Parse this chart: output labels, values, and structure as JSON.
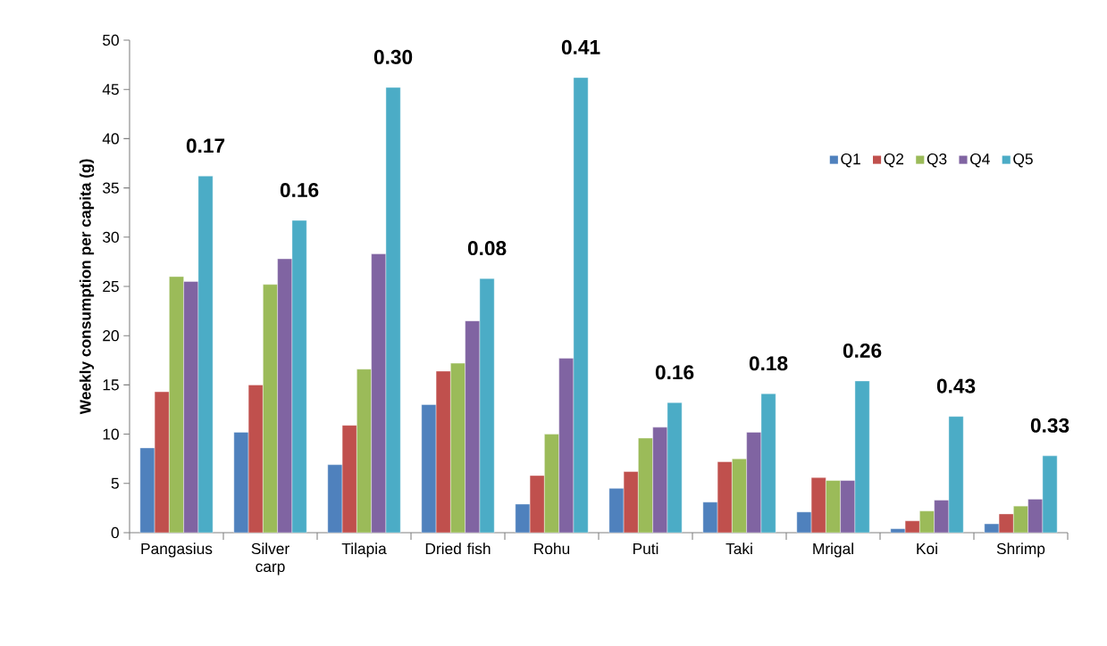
{
  "chart_data": {
    "type": "bar",
    "ylabel": "Weekly consumption per capita (g)",
    "categories": [
      "Pangasius",
      "Silver carp",
      "Tilapia",
      "Dried fish",
      "Rohu",
      "Puti",
      "Taki",
      "Mrigal",
      "Koi",
      "Shrimp"
    ],
    "series": [
      {
        "name": "Q1",
        "color": "#4f81bd",
        "values": [
          8.6,
          10.2,
          6.9,
          13.0,
          2.9,
          4.5,
          3.1,
          2.1,
          0.4,
          0.9
        ]
      },
      {
        "name": "Q2",
        "color": "#c0504d",
        "values": [
          14.3,
          15.0,
          10.9,
          16.4,
          5.8,
          6.2,
          7.2,
          5.6,
          1.2,
          1.9
        ]
      },
      {
        "name": "Q3",
        "color": "#9bbb59",
        "values": [
          26.0,
          25.2,
          16.6,
          17.2,
          10.0,
          9.6,
          7.5,
          5.3,
          2.2,
          2.7
        ]
      },
      {
        "name": "Q4",
        "color": "#8064a2",
        "values": [
          25.5,
          27.8,
          28.3,
          21.5,
          17.7,
          10.7,
          10.2,
          5.3,
          3.3,
          3.4
        ]
      },
      {
        "name": "Q5",
        "color": "#4bacc6",
        "values": [
          36.2,
          31.7,
          45.2,
          25.8,
          46.2,
          13.2,
          14.1,
          15.4,
          11.8,
          7.8
        ]
      }
    ],
    "ylim": [
      0,
      50
    ],
    "yticks": [
      0,
      5,
      10,
      15,
      20,
      25,
      30,
      35,
      40,
      45,
      50
    ],
    "legend": "top right",
    "annotations": [
      "0.17",
      "0.16",
      "0.30",
      "0.08",
      "0.41",
      "0.16",
      "0.18",
      "0.26",
      "0.43",
      "0.33"
    ]
  }
}
